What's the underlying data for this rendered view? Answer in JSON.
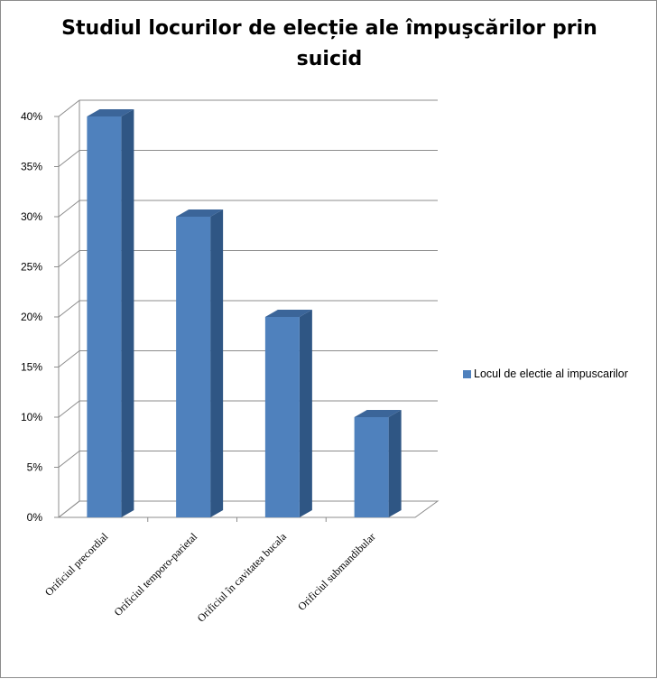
{
  "chart_data": {
    "type": "bar",
    "title": "Studiul locurilor de elecție ale împuşcărilor prin suicid",
    "categories": [
      "Orificiul precordial",
      "Orificiul temporo-parietal",
      "Orificiul în cavitatea bucala",
      "Orificiul submandibular"
    ],
    "series": [
      {
        "name": "Locul de electie al impuscarilor",
        "values": [
          0.4,
          0.3,
          0.2,
          0.1
        ]
      }
    ],
    "ylim": [
      0,
      0.4
    ],
    "yticks": [
      "0%",
      "5%",
      "10%",
      "15%",
      "20%",
      "25%",
      "30%",
      "35%",
      "40%"
    ],
    "grid": true,
    "legend_position": "right",
    "bar_color": "#4f81bd",
    "bar_side_color": "#2f5684",
    "bar_top_color": "#3b6599",
    "grid_color": "#8c8c8c"
  }
}
